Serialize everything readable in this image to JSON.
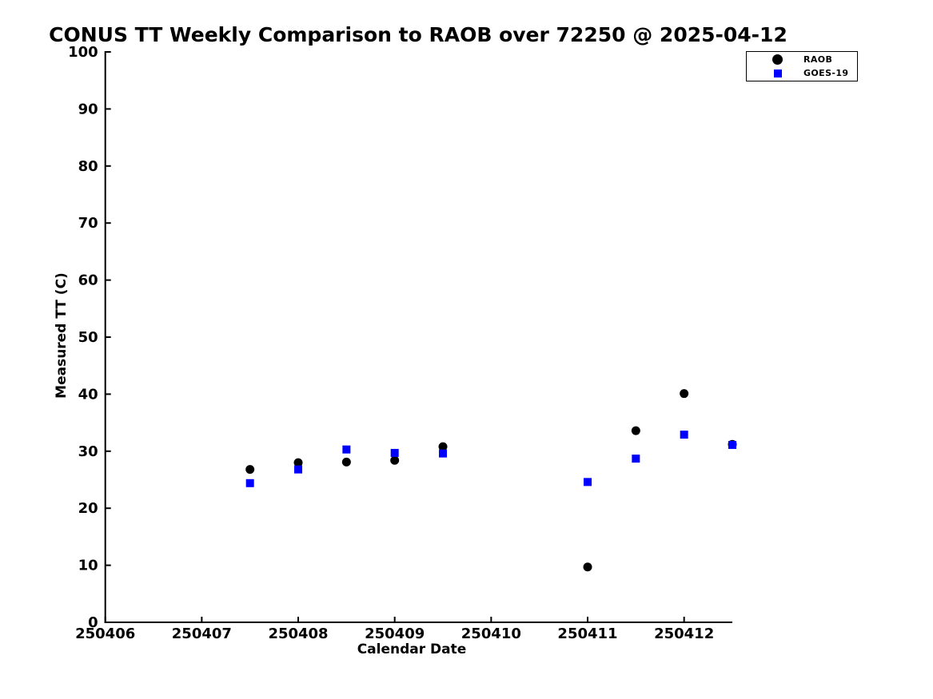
{
  "page": {
    "background": "#ffffff"
  },
  "chart_data": {
    "type": "scatter",
    "title": "CONUS TT Weekly Comparison to RAOB over 72250 @ 2025-04-12",
    "xlabel": "Calendar Date",
    "ylabel": "Measured TT (C)",
    "xlim": [
      250406,
      250412.5
    ],
    "ylim": [
      0,
      100
    ],
    "x_tick_labels": [
      "250406",
      "250407",
      "250408",
      "250409",
      "250410",
      "250411",
      "250412"
    ],
    "y_tick_labels": [
      "0",
      "10",
      "20",
      "30",
      "40",
      "50",
      "60",
      "70",
      "80",
      "90",
      "100"
    ],
    "grid": false,
    "legend": {
      "position": "top-right",
      "entries": [
        {
          "label": "RAOB",
          "marker": "circle",
          "color": "#000000"
        },
        {
          "label": "GOES-19",
          "marker": "square",
          "color": "#0000ff"
        }
      ]
    },
    "series": [
      {
        "name": "RAOB",
        "marker": "circle",
        "color": "#000000",
        "x": [
          250407.5,
          250408.0,
          250408.5,
          250409.0,
          250409.5,
          250411.0,
          250411.5,
          250412.0,
          250412.5
        ],
        "y": [
          26.8,
          28.0,
          28.1,
          28.4,
          30.8,
          9.7,
          33.6,
          40.1,
          31.2
        ]
      },
      {
        "name": "GOES-19",
        "marker": "square",
        "color": "#0000ff",
        "x": [
          250407.5,
          250408.0,
          250408.5,
          250409.0,
          250409.5,
          250411.0,
          250411.5,
          250412.0,
          250412.5
        ],
        "y": [
          24.4,
          26.8,
          30.3,
          29.7,
          29.6,
          24.6,
          28.7,
          32.9,
          31.1
        ]
      }
    ]
  }
}
